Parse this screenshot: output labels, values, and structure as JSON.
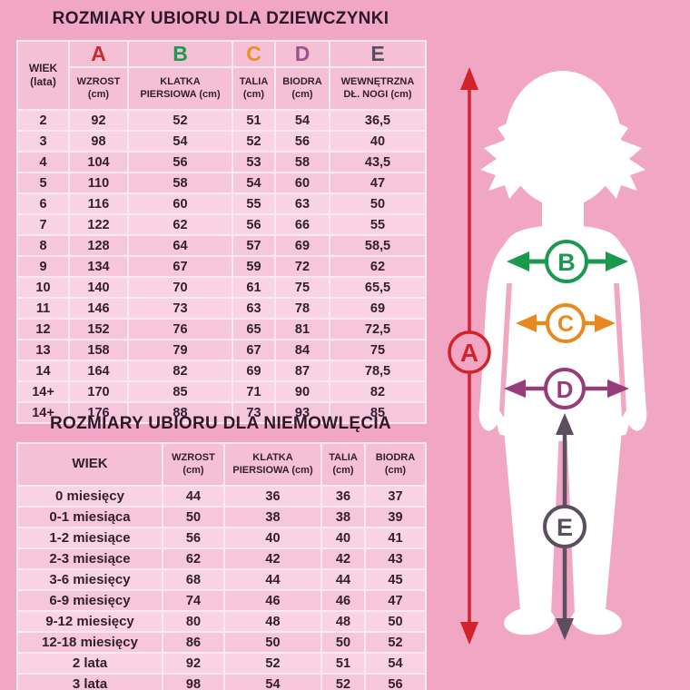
{
  "page": {
    "background_color": "#F1A6C4",
    "grid_color": "#FCE8F0",
    "text_color": "#33202F"
  },
  "girls": {
    "title": "ROZMIARY UBIORU DLA DZIEWCZYNKI",
    "headers": [
      {
        "letter": "",
        "color": "",
        "lines": [
          "WIEK",
          "(lata)"
        ]
      },
      {
        "letter": "A",
        "color": "#CC2A31",
        "lines": [
          "WZROST",
          "(cm)"
        ]
      },
      {
        "letter": "B",
        "color": "#1A9A4E",
        "lines": [
          "KLATKA",
          "PIERSIOWA (cm)"
        ]
      },
      {
        "letter": "C",
        "color": "#E8921F",
        "lines": [
          "TALIA",
          "(cm)"
        ]
      },
      {
        "letter": "D",
        "color": "#9B5389",
        "lines": [
          "BIODRA",
          "(cm)"
        ]
      },
      {
        "letter": "E",
        "color": "#564D5E",
        "lines": [
          "WEWNĘTRZNA",
          "DŁ. NOGI (cm)"
        ]
      }
    ],
    "rows": [
      [
        "2",
        "92",
        "52",
        "51",
        "54",
        "36,5"
      ],
      [
        "3",
        "98",
        "54",
        "52",
        "56",
        "40"
      ],
      [
        "4",
        "104",
        "56",
        "53",
        "58",
        "43,5"
      ],
      [
        "5",
        "110",
        "58",
        "54",
        "60",
        "47"
      ],
      [
        "6",
        "116",
        "60",
        "55",
        "63",
        "50"
      ],
      [
        "7",
        "122",
        "62",
        "56",
        "66",
        "55"
      ],
      [
        "8",
        "128",
        "64",
        "57",
        "69",
        "58,5"
      ],
      [
        "9",
        "134",
        "67",
        "59",
        "72",
        "62"
      ],
      [
        "10",
        "140",
        "70",
        "61",
        "75",
        "65,5"
      ],
      [
        "11",
        "146",
        "73",
        "63",
        "78",
        "69"
      ],
      [
        "12",
        "152",
        "76",
        "65",
        "81",
        "72,5"
      ],
      [
        "13",
        "158",
        "79",
        "67",
        "84",
        "75"
      ],
      [
        "14",
        "164",
        "82",
        "69",
        "87",
        "78,5"
      ],
      [
        "14+",
        "170",
        "85",
        "71",
        "90",
        "82"
      ],
      [
        "14+",
        "176",
        "88",
        "73",
        "93",
        "85"
      ]
    ]
  },
  "infants": {
    "title": "ROZMIARY UBIORU DLA NIEMOWLĘCIA",
    "headers": [
      {
        "lines": [
          "WIEK"
        ]
      },
      {
        "lines": [
          "WZROST",
          "(cm)"
        ]
      },
      {
        "lines": [
          "KLATKA",
          "PIERSIOWA (cm)"
        ]
      },
      {
        "lines": [
          "TALIA",
          "(cm)"
        ]
      },
      {
        "lines": [
          "BIODRA",
          "(cm)"
        ]
      }
    ],
    "rows": [
      [
        "0 miesięcy",
        "44",
        "36",
        "36",
        "37"
      ],
      [
        "0-1 miesiąca",
        "50",
        "38",
        "38",
        "39"
      ],
      [
        "1-2 miesiące",
        "56",
        "40",
        "40",
        "41"
      ],
      [
        "2-3 miesiące",
        "62",
        "42",
        "42",
        "43"
      ],
      [
        "3-6 miesięcy",
        "68",
        "44",
        "44",
        "45"
      ],
      [
        "6-9 miesięcy",
        "74",
        "46",
        "46",
        "47"
      ],
      [
        "9-12 miesięcy",
        "80",
        "48",
        "48",
        "50"
      ],
      [
        "12-18 miesięcy",
        "86",
        "50",
        "50",
        "52"
      ],
      [
        "2 lata",
        "92",
        "52",
        "51",
        "54"
      ],
      [
        "3 lata",
        "98",
        "54",
        "52",
        "56"
      ]
    ]
  },
  "figure": {
    "markers": [
      {
        "letter": "A",
        "color": "#D2232A"
      },
      {
        "letter": "B",
        "color": "#1A9A4E"
      },
      {
        "letter": "C",
        "color": "#E8891F"
      },
      {
        "letter": "D",
        "color": "#943D78"
      },
      {
        "letter": "E",
        "color": "#5B4F5F"
      }
    ]
  }
}
